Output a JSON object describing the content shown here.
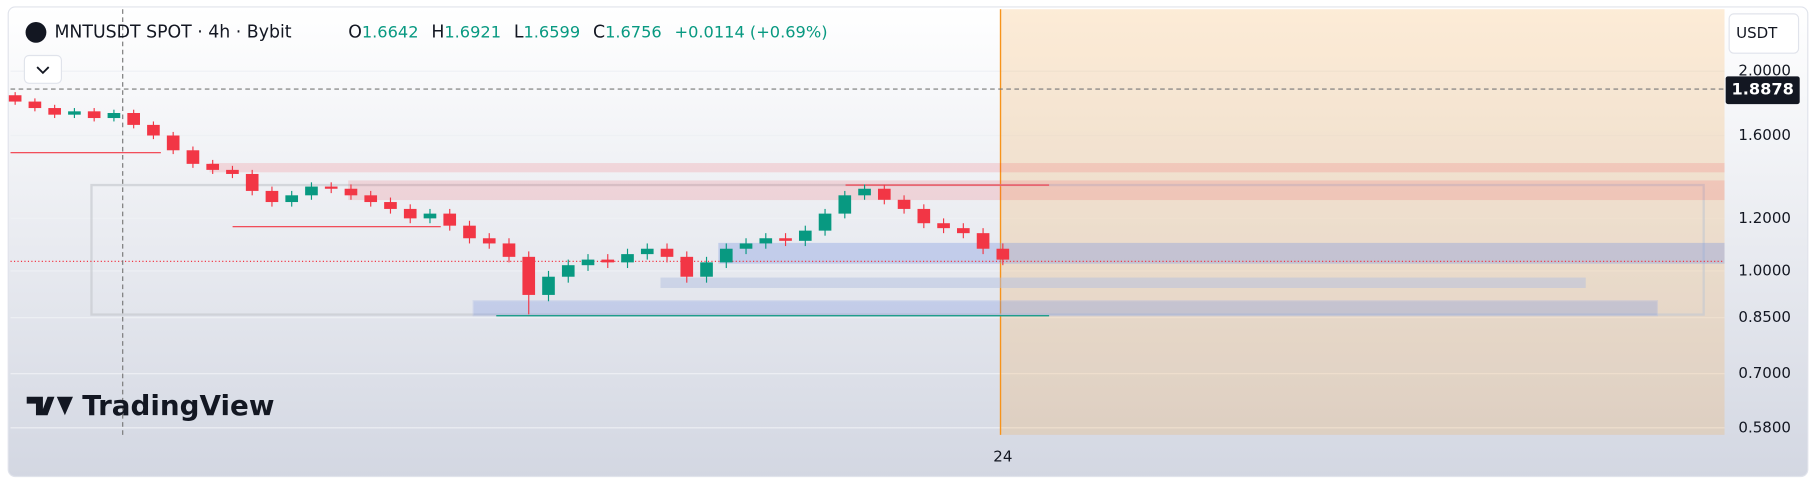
{
  "header": {
    "symbol": "MNTUSDT SPOT · 4h · Bybit",
    "o_label": "O",
    "o": "1.6642",
    "h_label": "H",
    "h": "1.6921",
    "l_label": "L",
    "l": "1.6599",
    "c_label": "C",
    "c": "1.6756",
    "change": "+0.0114 (+0.69%)"
  },
  "currency_button": "USDT",
  "crosshair_price": "1.8878",
  "logo": "TradingView",
  "chart_data": {
    "type": "candlestick",
    "log_scale": true,
    "up_color": "#089981",
    "down_color": "#f23645",
    "categories": [
      null,
      null,
      null,
      null,
      null,
      null,
      null,
      null,
      null,
      null,
      null,
      null,
      null,
      null,
      null,
      null,
      null,
      null,
      null,
      null,
      null,
      null,
      null,
      null,
      null,
      null,
      null,
      null,
      null,
      null,
      null,
      null,
      null,
      null,
      null,
      null,
      null,
      null,
      null,
      null,
      null,
      null,
      null,
      null,
      null,
      null,
      null,
      null,
      null,
      null,
      "24"
    ],
    "open": [
      1.84,
      1.8,
      1.76,
      1.72,
      1.74,
      1.7,
      1.73,
      1.66,
      1.6,
      1.52,
      1.45,
      1.42,
      1.4,
      1.32,
      1.27,
      1.3,
      1.34,
      1.33,
      1.3,
      1.27,
      1.24,
      1.2,
      1.22,
      1.17,
      1.12,
      1.1,
      1.05,
      0.92,
      0.98,
      1.02,
      1.04,
      1.03,
      1.06,
      1.08,
      1.05,
      0.98,
      1.03,
      1.08,
      1.1,
      1.12,
      1.11,
      1.15,
      1.22,
      1.3,
      1.33,
      1.28,
      1.24,
      1.18,
      1.16,
      1.14,
      1.08
    ],
    "high": [
      1.86,
      1.82,
      1.78,
      1.76,
      1.76,
      1.75,
      1.75,
      1.68,
      1.62,
      1.54,
      1.47,
      1.44,
      1.42,
      1.34,
      1.32,
      1.36,
      1.36,
      1.35,
      1.32,
      1.29,
      1.26,
      1.24,
      1.24,
      1.19,
      1.14,
      1.12,
      1.07,
      1.0,
      1.04,
      1.06,
      1.06,
      1.08,
      1.1,
      1.1,
      1.07,
      1.05,
      1.1,
      1.12,
      1.14,
      1.14,
      1.17,
      1.24,
      1.32,
      1.35,
      1.35,
      1.3,
      1.26,
      1.2,
      1.18,
      1.16,
      1.1
    ],
    "low": [
      1.78,
      1.74,
      1.7,
      1.7,
      1.68,
      1.68,
      1.64,
      1.58,
      1.5,
      1.43,
      1.4,
      1.38,
      1.3,
      1.25,
      1.25,
      1.28,
      1.31,
      1.28,
      1.25,
      1.22,
      1.18,
      1.18,
      1.15,
      1.1,
      1.08,
      1.03,
      0.86,
      0.9,
      0.96,
      1.0,
      1.01,
      1.01,
      1.04,
      1.03,
      0.96,
      0.96,
      1.01,
      1.06,
      1.08,
      1.09,
      1.09,
      1.13,
      1.2,
      1.28,
      1.26,
      1.22,
      1.16,
      1.14,
      1.12,
      1.06,
      1.02
    ],
    "close": [
      1.8,
      1.76,
      1.72,
      1.74,
      1.7,
      1.73,
      1.66,
      1.6,
      1.52,
      1.45,
      1.42,
      1.4,
      1.32,
      1.27,
      1.3,
      1.34,
      1.33,
      1.3,
      1.27,
      1.24,
      1.2,
      1.22,
      1.17,
      1.12,
      1.1,
      1.05,
      0.92,
      0.98,
      1.02,
      1.04,
      1.03,
      1.06,
      1.08,
      1.05,
      0.98,
      1.03,
      1.08,
      1.1,
      1.12,
      1.11,
      1.15,
      1.22,
      1.3,
      1.33,
      1.28,
      1.24,
      1.18,
      1.16,
      1.14,
      1.08,
      1.04
    ],
    "ylim": [
      0.566,
      2.48
    ],
    "yticks": [
      {
        "value": 2,
        "label": "2.0000"
      },
      {
        "value": 1.6,
        "label": "1.6000"
      },
      {
        "value": 1.2,
        "label": "1.2000"
      },
      {
        "value": 1,
        "label": "1.0000"
      },
      {
        "value": 0.85,
        "label": "0.8500"
      },
      {
        "value": 0.7,
        "label": "0.7000"
      },
      {
        "value": 0.58,
        "label": "0.5800"
      }
    ],
    "grid": true
  }
}
